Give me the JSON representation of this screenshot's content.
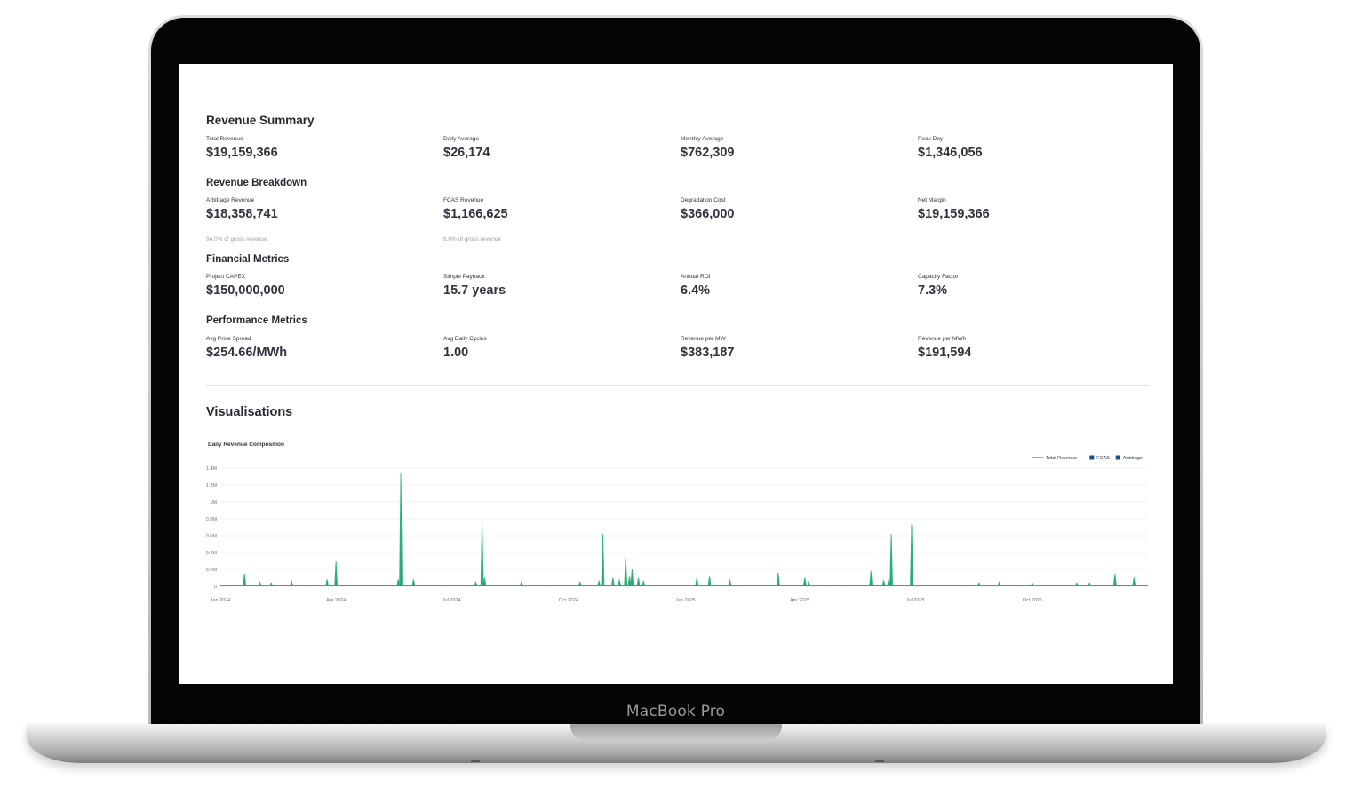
{
  "device": {
    "brand": "MacBook Pro"
  },
  "summary": {
    "title": "Revenue Summary",
    "metrics": [
      {
        "label": "Total Revenue",
        "value": "$19,159,366"
      },
      {
        "label": "Daily Average",
        "value": "$26,174"
      },
      {
        "label": "Monthly Average",
        "value": "$762,309"
      },
      {
        "label": "Peak Day",
        "value": "$1,346,056"
      }
    ]
  },
  "breakdown": {
    "title": "Revenue Breakdown",
    "metrics": [
      {
        "label": "Arbitrage Revenue",
        "value": "$18,358,741",
        "delta": "94.0% of gross revenue"
      },
      {
        "label": "FCAS Revenue",
        "value": "$1,166,625",
        "delta": "6.0% of gross revenue"
      },
      {
        "label": "Degradation Cost",
        "value": "$366,000"
      },
      {
        "label": "Net Margin",
        "value": "$19,159,366"
      }
    ]
  },
  "financial": {
    "title": "Financial Metrics",
    "metrics": [
      {
        "label": "Project CAPEX",
        "value": "$150,000,000"
      },
      {
        "label": "Simple Payback",
        "value": "15.7 years"
      },
      {
        "label": "Annual ROI",
        "value": "6.4%"
      },
      {
        "label": "Capacity Factor",
        "value": "7.3%"
      }
    ]
  },
  "performance": {
    "title": "Performance Metrics",
    "metrics": [
      {
        "label": "Avg Price Spread",
        "value": "$254.66/MWh"
      },
      {
        "label": "Avg Daily Cycles",
        "value": "1.00"
      },
      {
        "label": "Revenue per MW",
        "value": "$383,187"
      },
      {
        "label": "Revenue per MWh",
        "value": "$191,594"
      }
    ]
  },
  "visualisations": {
    "title": "Visualisations"
  },
  "chart_data": {
    "type": "area",
    "title": "Daily Revenue Composition",
    "xlabel": "",
    "ylabel": "",
    "x_range": [
      "2024-01-01",
      "2025-12-31"
    ],
    "x_ticks": [
      "Jan 2024",
      "Apr 2024",
      "Jul 2024",
      "Oct 2024",
      "Jan 2025",
      "Apr 2025",
      "Jul 2025",
      "Oct 2025"
    ],
    "ylim": [
      0,
      1400000
    ],
    "y_ticks": [
      "0",
      "0.2M",
      "0.4M",
      "0.6M",
      "0.8M",
      "1M",
      "1.2M",
      "1.4M"
    ],
    "legend_placement": "top-right",
    "grid": true,
    "series": [
      {
        "name": "Total Revenue",
        "color": "#2bb673",
        "style": "line"
      },
      {
        "name": "FCAS",
        "color": "#1f4e8c",
        "style": "area"
      },
      {
        "name": "Arbitrage",
        "color": "#1f4e8c",
        "style": "area"
      }
    ],
    "baseline_value": 15000,
    "spikes": [
      {
        "date": "2024-01-20",
        "value": 150000
      },
      {
        "date": "2024-02-01",
        "value": 50000
      },
      {
        "date": "2024-02-10",
        "value": 40000
      },
      {
        "date": "2024-02-26",
        "value": 60000
      },
      {
        "date": "2024-03-25",
        "value": 80000
      },
      {
        "date": "2024-04-01",
        "value": 300000
      },
      {
        "date": "2024-05-20",
        "value": 80000
      },
      {
        "date": "2024-05-22",
        "value": 1346056
      },
      {
        "date": "2024-06-01",
        "value": 80000
      },
      {
        "date": "2024-07-20",
        "value": 50000
      },
      {
        "date": "2024-07-25",
        "value": 750000
      },
      {
        "date": "2024-07-27",
        "value": 100000
      },
      {
        "date": "2024-08-25",
        "value": 50000
      },
      {
        "date": "2024-10-10",
        "value": 50000
      },
      {
        "date": "2024-10-25",
        "value": 60000
      },
      {
        "date": "2024-10-28",
        "value": 620000
      },
      {
        "date": "2024-11-05",
        "value": 100000
      },
      {
        "date": "2024-11-10",
        "value": 70000
      },
      {
        "date": "2024-11-15",
        "value": 350000
      },
      {
        "date": "2024-11-18",
        "value": 120000
      },
      {
        "date": "2024-11-20",
        "value": 200000
      },
      {
        "date": "2024-11-25",
        "value": 100000
      },
      {
        "date": "2024-11-29",
        "value": 60000
      },
      {
        "date": "2025-01-10",
        "value": 100000
      },
      {
        "date": "2025-01-20",
        "value": 120000
      },
      {
        "date": "2025-02-05",
        "value": 70000
      },
      {
        "date": "2025-03-15",
        "value": 160000
      },
      {
        "date": "2025-04-05",
        "value": 100000
      },
      {
        "date": "2025-04-08",
        "value": 60000
      },
      {
        "date": "2025-05-27",
        "value": 180000
      },
      {
        "date": "2025-06-06",
        "value": 70000
      },
      {
        "date": "2025-06-10",
        "value": 80000
      },
      {
        "date": "2025-06-12",
        "value": 620000
      },
      {
        "date": "2025-06-28",
        "value": 730000
      },
      {
        "date": "2025-08-20",
        "value": 40000
      },
      {
        "date": "2025-09-05",
        "value": 50000
      },
      {
        "date": "2025-10-01",
        "value": 40000
      },
      {
        "date": "2025-11-05",
        "value": 40000
      },
      {
        "date": "2025-11-15",
        "value": 40000
      },
      {
        "date": "2025-12-05",
        "value": 150000
      },
      {
        "date": "2025-12-20",
        "value": 100000
      }
    ]
  }
}
